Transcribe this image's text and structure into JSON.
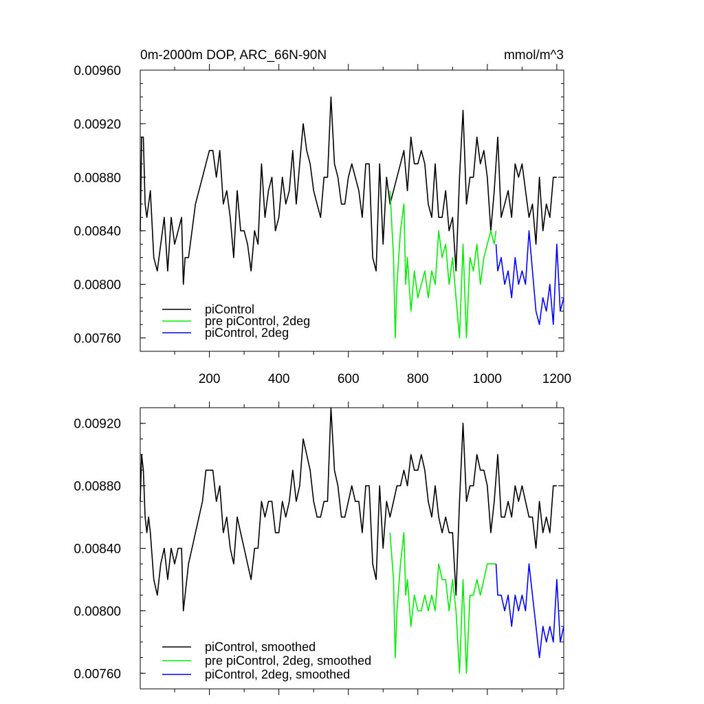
{
  "chart_data": [
    {
      "type": "line",
      "title": "0m-2000m DOP, ARC_66N-90N",
      "units": "mmol/m^3",
      "xlim": [
        1,
        1220
      ],
      "ylim": [
        0.0075,
        0.0096
      ],
      "yticks": [
        "0.00760",
        "0.00800",
        "0.00840",
        "0.00880",
        "0.00920",
        "0.00960"
      ],
      "xticks": [
        "200",
        "400",
        "600",
        "800",
        "1000",
        "1200"
      ],
      "legend_position": "bottom-left",
      "series": [
        {
          "name": "piControl",
          "color": "#000000",
          "x": [
            1,
            5,
            10,
            15,
            20,
            25,
            30,
            40,
            50,
            60,
            70,
            80,
            90,
            100,
            110,
            120,
            125,
            130,
            140,
            150,
            160,
            170,
            180,
            190,
            200,
            210,
            220,
            230,
            240,
            250,
            260,
            270,
            280,
            290,
            300,
            310,
            320,
            330,
            340,
            350,
            360,
            370,
            380,
            390,
            400,
            410,
            420,
            430,
            440,
            450,
            460,
            470,
            480,
            490,
            500,
            510,
            520,
            530,
            540,
            550,
            560,
            570,
            580,
            590,
            600,
            610,
            620,
            630,
            640,
            650,
            660,
            670,
            680,
            690,
            700,
            710,
            720,
            730,
            740,
            750,
            760,
            770,
            780,
            790,
            800,
            810,
            820,
            830,
            840,
            850,
            860,
            870,
            880,
            890,
            900,
            910,
            920,
            930,
            940,
            950,
            960,
            970,
            980,
            990,
            1000,
            1010,
            1020,
            1030,
            1040,
            1050,
            1060,
            1070,
            1080,
            1090,
            1100,
            1110,
            1120,
            1130,
            1140,
            1150,
            1160,
            1170,
            1180,
            1190,
            1200
          ],
          "values": [
            0.0084,
            0.0091,
            0.0091,
            0.0086,
            0.0085,
            0.0086,
            0.0087,
            0.0082,
            0.0081,
            0.0083,
            0.0085,
            0.0081,
            0.0085,
            0.0083,
            0.0084,
            0.0085,
            0.008,
            0.0082,
            0.0082,
            0.0084,
            0.0086,
            0.0087,
            0.0088,
            0.0089,
            0.009,
            0.009,
            0.0088,
            0.009,
            0.0086,
            0.0087,
            0.0085,
            0.0082,
            0.0087,
            0.0084,
            0.0084,
            0.0083,
            0.0081,
            0.0084,
            0.0083,
            0.0089,
            0.0085,
            0.0087,
            0.0088,
            0.0084,
            0.0085,
            0.0088,
            0.0086,
            0.0087,
            0.009,
            0.0086,
            0.0089,
            0.0092,
            0.009,
            0.0089,
            0.0087,
            0.0086,
            0.0085,
            0.0088,
            0.0088,
            0.0094,
            0.0089,
            0.0088,
            0.0086,
            0.0086,
            0.0088,
            0.0089,
            0.0088,
            0.0087,
            0.0085,
            0.0089,
            0.0089,
            0.0082,
            0.0081,
            0.0089,
            0.0083,
            0.0088,
            0.0086,
            0.0087,
            0.0088,
            0.0089,
            0.009,
            0.0087,
            0.0091,
            0.0089,
            0.0089,
            0.009,
            0.0089,
            0.0086,
            0.0085,
            0.0089,
            0.0085,
            0.0085,
            0.0087,
            0.0084,
            0.0085,
            0.0081,
            0.0088,
            0.0093,
            0.0086,
            0.0088,
            0.0088,
            0.0091,
            0.0089,
            0.009,
            0.0088,
            0.0084,
            0.0087,
            0.0091,
            0.0085,
            0.0086,
            0.0087,
            0.0085,
            0.0089,
            0.0088,
            0.0089,
            0.0087,
            0.0085,
            0.0086,
            0.0083,
            0.0088,
            0.0084,
            0.0086,
            0.0085,
            0.0088,
            0.0088
          ]
        },
        {
          "name": "pre piControl, 2deg",
          "color": "#00ee00",
          "x": [
            720,
            730,
            735,
            740,
            750,
            760,
            765,
            770,
            780,
            790,
            800,
            810,
            820,
            830,
            840,
            850,
            860,
            870,
            880,
            890,
            900,
            910,
            920,
            930,
            940,
            950,
            960,
            970,
            980,
            990,
            1000,
            1010,
            1020,
            1025
          ],
          "values": [
            0.0087,
            0.0082,
            0.0076,
            0.008,
            0.0084,
            0.0086,
            0.008,
            0.0082,
            0.0078,
            0.0081,
            0.0079,
            0.008,
            0.0081,
            0.0079,
            0.0081,
            0.008,
            0.0084,
            0.0082,
            0.0083,
            0.008,
            0.0082,
            0.0079,
            0.0076,
            0.0083,
            0.0076,
            0.0082,
            0.0081,
            0.0083,
            0.008,
            0.0082,
            0.0083,
            0.0084,
            0.0083,
            0.0084
          ]
        },
        {
          "name": "piControl, 2deg",
          "color": "#0000ff",
          "x": [
            1025,
            1030,
            1040,
            1050,
            1060,
            1070,
            1080,
            1090,
            1100,
            1110,
            1120,
            1130,
            1140,
            1150,
            1160,
            1170,
            1180,
            1190,
            1200,
            1210,
            1220
          ],
          "values": [
            0.0083,
            0.0081,
            0.0082,
            0.008,
            0.0081,
            0.0079,
            0.0082,
            0.008,
            0.0081,
            0.008,
            0.0084,
            0.0081,
            0.0078,
            0.0077,
            0.0079,
            0.0078,
            0.008,
            0.0077,
            0.0083,
            0.0078,
            0.0079
          ]
        }
      ]
    },
    {
      "type": "line",
      "xlim": [
        1,
        1220
      ],
      "ylim": [
        0.0075,
        0.0093
      ],
      "yticks": [
        "0.00760",
        "0.00800",
        "0.00840",
        "0.00880",
        "0.00920"
      ],
      "legend_position": "bottom-left",
      "series": [
        {
          "name": "piControl, smoothed",
          "color": "#000000",
          "x": [
            1,
            5,
            10,
            15,
            20,
            25,
            30,
            40,
            50,
            60,
            70,
            80,
            90,
            100,
            110,
            120,
            125,
            130,
            140,
            150,
            160,
            170,
            180,
            190,
            200,
            210,
            220,
            230,
            240,
            250,
            260,
            270,
            280,
            290,
            300,
            310,
            320,
            330,
            340,
            350,
            360,
            370,
            380,
            390,
            400,
            410,
            420,
            430,
            440,
            450,
            460,
            470,
            480,
            490,
            500,
            510,
            520,
            530,
            540,
            550,
            560,
            570,
            580,
            590,
            600,
            610,
            620,
            630,
            640,
            650,
            660,
            670,
            680,
            690,
            700,
            710,
            720,
            730,
            740,
            750,
            760,
            770,
            780,
            790,
            800,
            810,
            820,
            830,
            840,
            850,
            860,
            870,
            880,
            890,
            900,
            910,
            920,
            930,
            940,
            950,
            960,
            970,
            980,
            990,
            1000,
            1010,
            1020,
            1030,
            1040,
            1050,
            1060,
            1070,
            1080,
            1090,
            1100,
            1110,
            1120,
            1130,
            1140,
            1150,
            1160,
            1170,
            1180,
            1190,
            1200
          ],
          "values": [
            0.0087,
            0.009,
            0.0089,
            0.0086,
            0.0085,
            0.0086,
            0.0085,
            0.0082,
            0.0081,
            0.0083,
            0.0084,
            0.0082,
            0.0084,
            0.0083,
            0.0084,
            0.0084,
            0.008,
            0.0081,
            0.0083,
            0.0084,
            0.0085,
            0.0086,
            0.0087,
            0.0089,
            0.0089,
            0.0089,
            0.0087,
            0.0088,
            0.0085,
            0.0086,
            0.0084,
            0.0083,
            0.0086,
            0.0085,
            0.0084,
            0.0083,
            0.0082,
            0.0084,
            0.0084,
            0.0087,
            0.0086,
            0.0087,
            0.0087,
            0.0085,
            0.0085,
            0.0087,
            0.0086,
            0.0087,
            0.0089,
            0.0087,
            0.0088,
            0.0091,
            0.009,
            0.0089,
            0.0087,
            0.0086,
            0.0086,
            0.0087,
            0.0087,
            0.0093,
            0.0089,
            0.0088,
            0.0086,
            0.0086,
            0.0087,
            0.0088,
            0.0087,
            0.0087,
            0.0085,
            0.0088,
            0.0088,
            0.0083,
            0.0082,
            0.0088,
            0.0084,
            0.0087,
            0.0086,
            0.0087,
            0.0088,
            0.0088,
            0.0089,
            0.0088,
            0.009,
            0.0089,
            0.0089,
            0.009,
            0.0089,
            0.0087,
            0.0086,
            0.0088,
            0.0086,
            0.0085,
            0.0086,
            0.0085,
            0.0085,
            0.0081,
            0.0087,
            0.0092,
            0.0087,
            0.0088,
            0.0088,
            0.009,
            0.0089,
            0.0089,
            0.0088,
            0.0085,
            0.0087,
            0.009,
            0.0086,
            0.0086,
            0.0087,
            0.0086,
            0.0088,
            0.0087,
            0.0088,
            0.0087,
            0.0086,
            0.0086,
            0.0084,
            0.0087,
            0.0085,
            0.0086,
            0.0085,
            0.0088,
            0.0088
          ]
        },
        {
          "name": "pre piControl, 2deg, smoothed",
          "color": "#00ee00",
          "x": [
            720,
            730,
            735,
            740,
            750,
            760,
            765,
            770,
            780,
            790,
            800,
            810,
            820,
            830,
            840,
            850,
            860,
            870,
            880,
            890,
            900,
            910,
            920,
            930,
            940,
            950,
            960,
            970,
            980,
            990,
            1000,
            1010,
            1020,
            1025
          ],
          "values": [
            0.0085,
            0.0082,
            0.0077,
            0.008,
            0.0083,
            0.0085,
            0.0081,
            0.0082,
            0.0079,
            0.0081,
            0.008,
            0.008,
            0.0081,
            0.008,
            0.0081,
            0.008,
            0.0083,
            0.0082,
            0.0082,
            0.008,
            0.0082,
            0.008,
            0.0076,
            0.0082,
            0.0076,
            0.0081,
            0.0081,
            0.0082,
            0.0081,
            0.0082,
            0.0083,
            0.0083,
            0.0083,
            0.0083
          ]
        },
        {
          "name": "piControl, 2deg, smoothed",
          "color": "#0000ff",
          "x": [
            1025,
            1030,
            1040,
            1050,
            1060,
            1070,
            1080,
            1090,
            1100,
            1110,
            1120,
            1130,
            1140,
            1150,
            1160,
            1170,
            1180,
            1190,
            1200,
            1210,
            1220
          ],
          "values": [
            0.0083,
            0.0081,
            0.0081,
            0.008,
            0.0081,
            0.0079,
            0.0081,
            0.008,
            0.0081,
            0.008,
            0.0083,
            0.0081,
            0.0079,
            0.0077,
            0.0079,
            0.0078,
            0.0079,
            0.0078,
            0.0082,
            0.0078,
            0.0079
          ]
        }
      ]
    }
  ]
}
